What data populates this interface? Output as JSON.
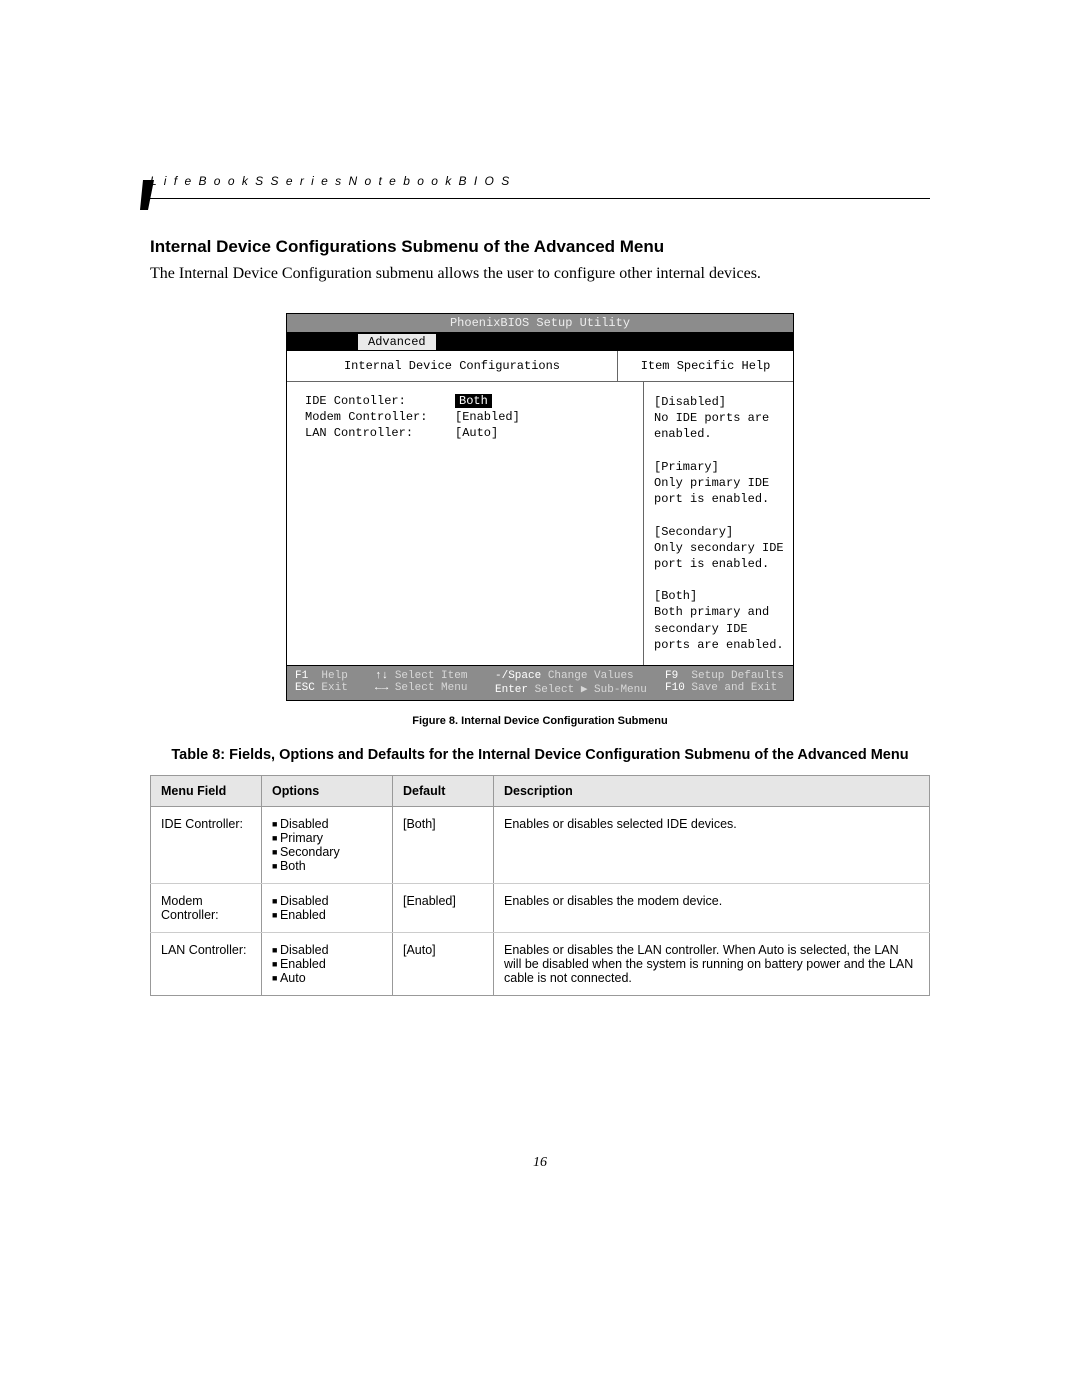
{
  "header": {
    "running_head": "L i f e B o o k   S   S e r i e s   N o t e b o o k   B I O S"
  },
  "section": {
    "title": "Internal Device Configurations Submenu of the Advanced Menu",
    "intro": "The Internal Device Configuration submenu allows the user to configure other internal devices."
  },
  "bios": {
    "utility_title": "PhoenixBIOS Setup Utility",
    "tab": "Advanced",
    "panel_title": "Internal Device Configurations",
    "help_title": "Item Specific Help",
    "fields": [
      {
        "label": "IDE Contoller:",
        "value": "Both",
        "selected": true
      },
      {
        "label": "Modem Controller:",
        "value": "[Enabled]",
        "selected": false
      },
      {
        "label": "LAN Controller:",
        "value": "[Auto]",
        "selected": false
      }
    ],
    "help_text": "[Disabled]\nNo IDE ports are enabled.\n\n[Primary]\nOnly primary IDE port is enabled.\n\n[Secondary]\nOnly secondary IDE port is enabled.\n\n[Both]\nBoth primary and secondary IDE ports are enabled.",
    "footer": {
      "f1": "F1",
      "f1_label": "Help",
      "esc": "ESC",
      "esc_label": "Exit",
      "updown": "↑↓",
      "updown_label": "Select Item",
      "leftright": "←→",
      "leftright_label": "Select Menu",
      "minus": "-/Space",
      "minus_label": "Change Values",
      "enter": "Enter",
      "enter_label": "Select ▶ Sub-Menu",
      "f9": "F9",
      "f9_label": "Setup Defaults",
      "f10": "F10",
      "f10_label": "Save and Exit"
    }
  },
  "figure_caption": "Figure 8.  Internal Device Configuration Submenu",
  "table_caption": "Table 8: Fields, Options and Defaults for the Internal Device Configuration Submenu of the Advanced Menu",
  "table": {
    "columns": [
      "Menu Field",
      "Options",
      "Default",
      "Description"
    ],
    "rows": [
      {
        "menu_field": "IDE Controller:",
        "options": [
          "Disabled",
          "Primary",
          "Secondary",
          "Both"
        ],
        "default": "[Both]",
        "description": "Enables or disables selected IDE devices."
      },
      {
        "menu_field": "Modem Controller:",
        "options": [
          "Disabled",
          "Enabled"
        ],
        "default": "[Enabled]",
        "description": "Enables or disables the modem device."
      },
      {
        "menu_field": "LAN Controller:",
        "options": [
          "Disabled",
          "Enabled",
          "Auto"
        ],
        "default": "[Auto]",
        "description": "Enables or disables the LAN controller. When Auto is selected, the LAN will be disabled when the system is running on battery power and the LAN cable is not connected."
      }
    ]
  },
  "page_number": "16"
}
